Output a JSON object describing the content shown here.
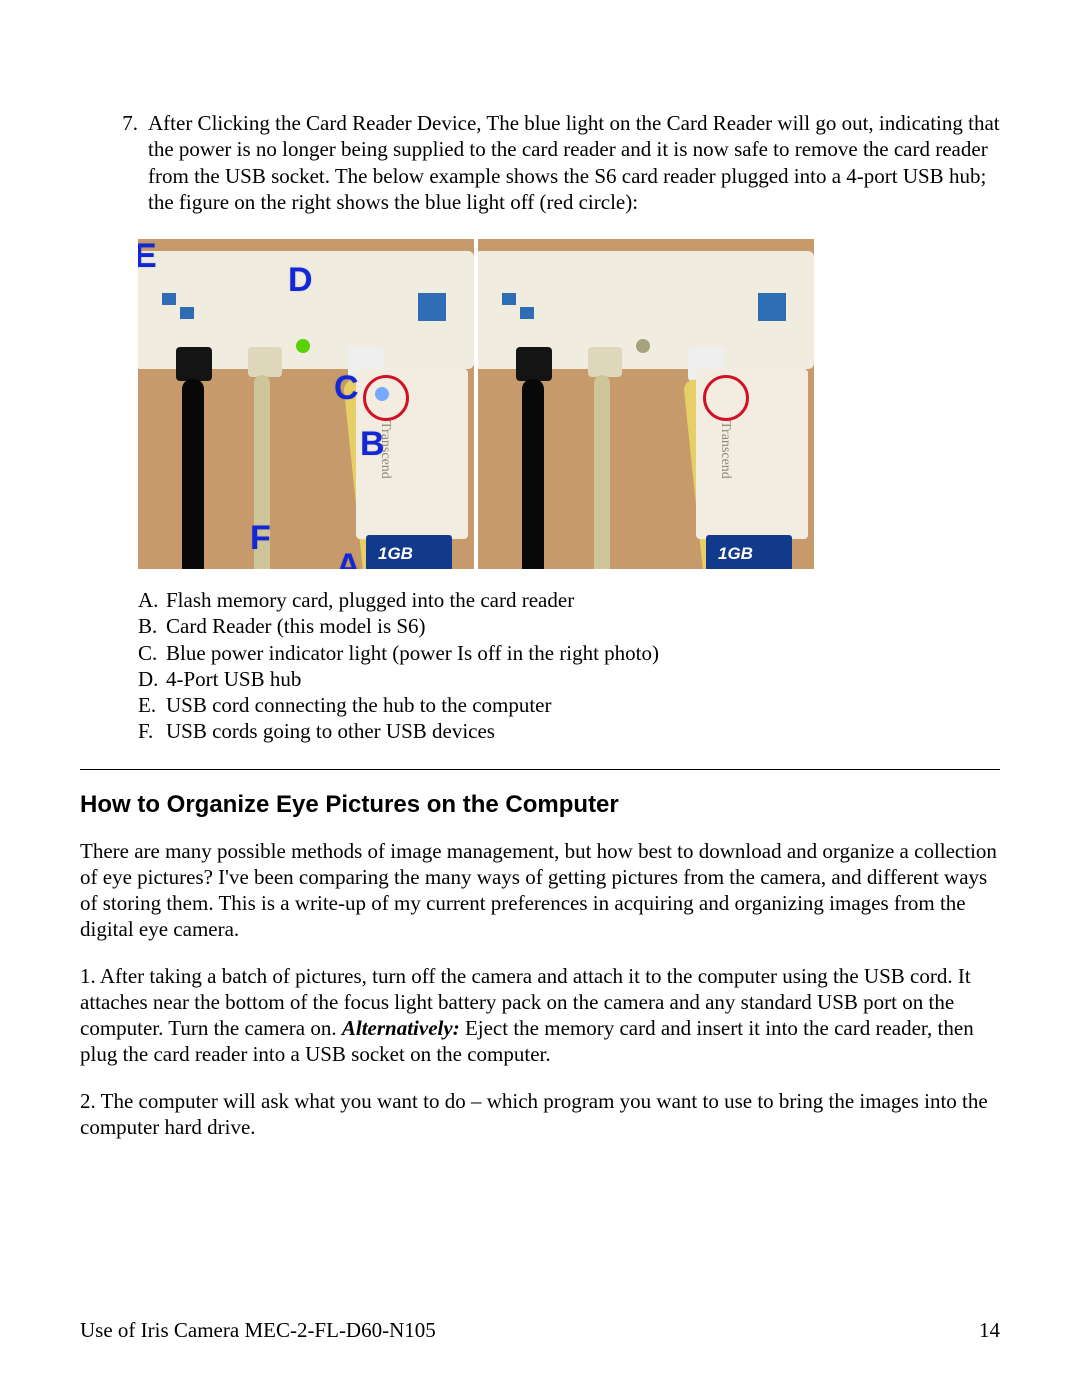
{
  "step7": {
    "number": "7.",
    "text": "After Clicking the Card Reader Device, The blue light on the Card Reader will go out, indicating that the power is no longer being supplied to the card reader and it is now safe to remove the card reader from the USB socket. The below example shows the S6 card reader plugged into a 4-port USB hub; the figure on the right shows the blue light off (red circle):"
  },
  "figure": {
    "labels": {
      "A": "A",
      "B": "B",
      "C": "C",
      "D": "D",
      "E": "E",
      "F": "F"
    },
    "reader_brand": "Transcend",
    "sd_label_left": "1GB",
    "sd_label_right": "1GB",
    "colors": {
      "photo_bg": "#c79a6b",
      "hub_body": "#f1ece0",
      "label_blue": "#1227d6",
      "circle_red": "#d01227",
      "sd_blue": "#123a8c",
      "led_on": "#59d20a",
      "led_off": "#a6a27d",
      "blue_light": "#79a8ff"
    }
  },
  "legend": {
    "A": "Flash memory card, plugged into the card reader",
    "B": "Card Reader (this model is S6)",
    "C": "Blue power indicator light (power Is off in the right photo)",
    "D": "4-Port USB hub",
    "E": "USB cord connecting the hub to the computer",
    "F": "USB cords going to other USB devices"
  },
  "section_heading": "How to Organize Eye Pictures on the Computer",
  "intro": "There are many possible methods of image management, but how best to download and organize a collection of eye pictures? I've been comparing the many ways of getting pictures from the camera, and different ways of storing them. This is a write-up of my current preferences in acquiring and organizing images from the digital eye camera.",
  "p1_before": "1. After taking a batch of pictures, turn off the camera and attach it to the computer using the USB cord. It attaches near the bottom of the focus light battery pack on the camera and any standard USB port on the computer. Turn the camera on. ",
  "p1_alt": "Alternatively:",
  "p1_after": " Eject the memory card and insert it into the card reader, then plug the card reader into a USB socket on the computer.",
  "p2": "2. The computer will ask what you want to do – which program you want to use to bring the images into the computer hard drive.",
  "footer": {
    "title": "Use of Iris Camera MEC-2-FL-D60-N105",
    "page": "14"
  }
}
